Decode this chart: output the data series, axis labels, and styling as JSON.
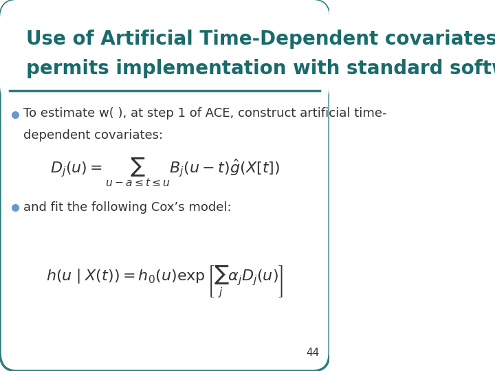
{
  "title_line1": "Use of Artificial Time-Dependent covariates",
  "title_line2": "permits implementation with standard software",
  "title_color": "#1a6b6b",
  "title_fontsize": 20,
  "bullet_color": "#6699cc",
  "bullet1_text": "To estimate w( ), at step 1 of ACE, construct artificial time-\ndependent covariates:",
  "bullet2_text": "and fit the following Cox’s model:",
  "eq1": "$D_j(u) = \\sum_{u-a \\leq t \\leq u} B_j(u-t)\\hat{g}(X[t])$",
  "eq2": "$h(u \\mid X(t)) = h_0(u)\\exp\\left[\\sum_j \\alpha_j D_j(u)\\right]$",
  "page_number": "44",
  "bg_color": "#ffffff",
  "border_color": "#2d7d7d",
  "text_color": "#333333",
  "body_fontsize": 13,
  "eq_fontsize": 16
}
